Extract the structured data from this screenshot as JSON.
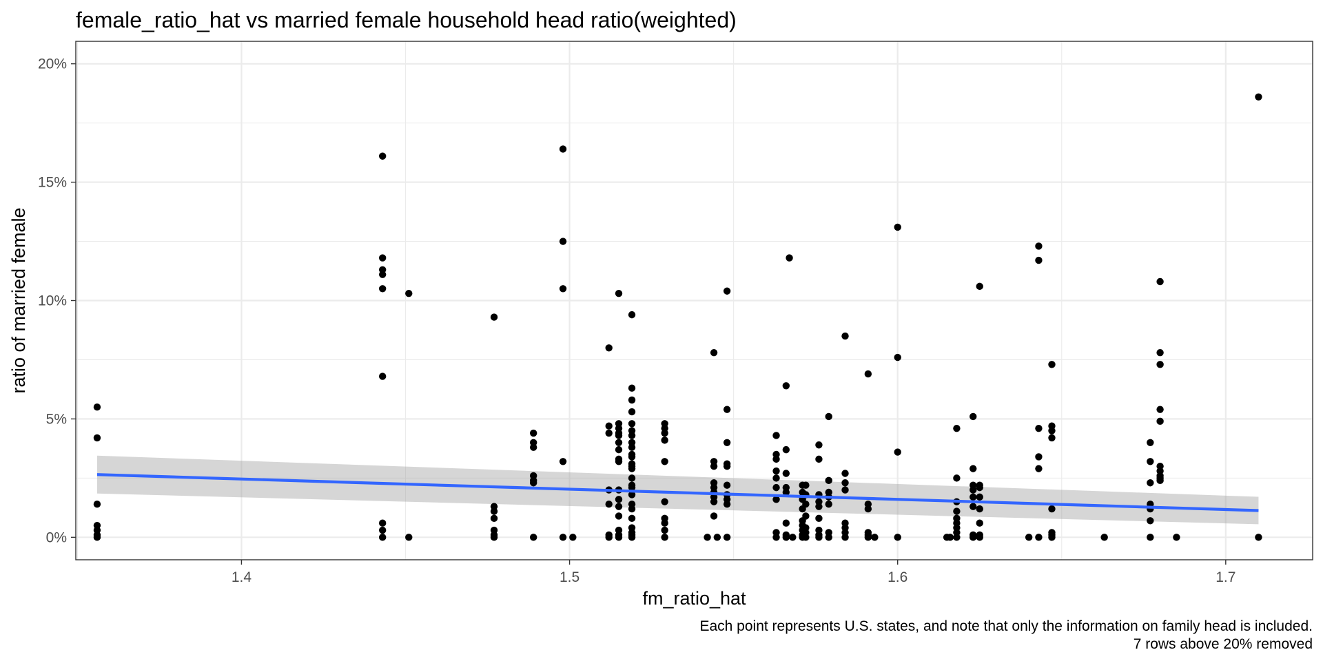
{
  "chart_data": {
    "type": "scatter",
    "title": "female_ratio_hat vs married female household head ratio(weighted)",
    "xlabel": "fm_ratio_hat",
    "ylabel": "ratio of married female",
    "caption_lines": [
      "Each point represents U.S. states, and note that only the information on family head is included.",
      "7 rows above 20% removed"
    ],
    "xlim": [
      1.3495,
      1.7265
    ],
    "ylim": [
      -0.0095,
      0.2095
    ],
    "x_ticks": [
      {
        "value": 1.4,
        "label": "1.4"
      },
      {
        "value": 1.5,
        "label": "1.5"
      },
      {
        "value": 1.6,
        "label": "1.6"
      },
      {
        "value": 1.7,
        "label": "1.7"
      }
    ],
    "x_minor_ticks": [
      1.35,
      1.45,
      1.55,
      1.65
    ],
    "y_ticks": [
      {
        "value": 0.0,
        "label": "0%"
      },
      {
        "value": 0.05,
        "label": "5%"
      },
      {
        "value": 0.1,
        "label": "10%"
      },
      {
        "value": 0.15,
        "label": "15%"
      },
      {
        "value": 0.2,
        "label": "20%"
      }
    ],
    "y_minor_ticks": [
      0.025,
      0.075,
      0.125,
      0.175
    ],
    "grid": true,
    "theme": "bw",
    "points": [
      [
        1.356,
        0.055
      ],
      [
        1.356,
        0.042
      ],
      [
        1.356,
        0.014
      ],
      [
        1.356,
        0.005
      ],
      [
        1.356,
        0.003
      ],
      [
        1.356,
        0.001
      ],
      [
        1.356,
        0.0
      ],
      [
        1.443,
        0.161
      ],
      [
        1.443,
        0.118
      ],
      [
        1.443,
        0.113
      ],
      [
        1.443,
        0.111
      ],
      [
        1.443,
        0.105
      ],
      [
        1.443,
        0.068
      ],
      [
        1.443,
        0.006
      ],
      [
        1.443,
        0.003
      ],
      [
        1.443,
        0.0
      ],
      [
        1.451,
        0.103
      ],
      [
        1.451,
        0.0
      ],
      [
        1.477,
        0.093
      ],
      [
        1.477,
        0.013
      ],
      [
        1.477,
        0.011
      ],
      [
        1.477,
        0.008
      ],
      [
        1.477,
        0.003
      ],
      [
        1.477,
        0.001
      ],
      [
        1.477,
        0.0
      ],
      [
        1.489,
        0.044
      ],
      [
        1.489,
        0.04
      ],
      [
        1.489,
        0.038
      ],
      [
        1.489,
        0.026
      ],
      [
        1.489,
        0.024
      ],
      [
        1.489,
        0.023
      ],
      [
        1.489,
        0.0
      ],
      [
        1.498,
        0.164
      ],
      [
        1.498,
        0.125
      ],
      [
        1.498,
        0.105
      ],
      [
        1.498,
        0.032
      ],
      [
        1.498,
        0.0
      ],
      [
        1.501,
        0.0
      ],
      [
        1.512,
        0.08
      ],
      [
        1.512,
        0.047
      ],
      [
        1.512,
        0.044
      ],
      [
        1.512,
        0.02
      ],
      [
        1.512,
        0.014
      ],
      [
        1.512,
        0.001
      ],
      [
        1.512,
        0.0
      ],
      [
        1.515,
        0.103
      ],
      [
        1.515,
        0.048
      ],
      [
        1.515,
        0.046
      ],
      [
        1.515,
        0.044
      ],
      [
        1.515,
        0.043
      ],
      [
        1.515,
        0.04
      ],
      [
        1.515,
        0.037
      ],
      [
        1.515,
        0.033
      ],
      [
        1.515,
        0.032
      ],
      [
        1.515,
        0.02
      ],
      [
        1.515,
        0.016
      ],
      [
        1.515,
        0.013
      ],
      [
        1.515,
        0.009
      ],
      [
        1.515,
        0.003
      ],
      [
        1.515,
        0.001
      ],
      [
        1.515,
        0.0
      ],
      [
        1.519,
        0.094
      ],
      [
        1.519,
        0.063
      ],
      [
        1.519,
        0.058
      ],
      [
        1.519,
        0.053
      ],
      [
        1.519,
        0.048
      ],
      [
        1.519,
        0.045
      ],
      [
        1.519,
        0.043
      ],
      [
        1.519,
        0.04
      ],
      [
        1.519,
        0.038
      ],
      [
        1.519,
        0.035
      ],
      [
        1.519,
        0.034
      ],
      [
        1.519,
        0.031
      ],
      [
        1.519,
        0.03
      ],
      [
        1.519,
        0.029
      ],
      [
        1.519,
        0.025
      ],
      [
        1.519,
        0.022
      ],
      [
        1.519,
        0.021
      ],
      [
        1.519,
        0.018
      ],
      [
        1.519,
        0.014
      ],
      [
        1.519,
        0.012
      ],
      [
        1.519,
        0.008
      ],
      [
        1.519,
        0.004
      ],
      [
        1.519,
        0.002
      ],
      [
        1.519,
        0.001
      ],
      [
        1.519,
        0.0
      ],
      [
        1.529,
        0.048
      ],
      [
        1.529,
        0.046
      ],
      [
        1.529,
        0.044
      ],
      [
        1.529,
        0.041
      ],
      [
        1.529,
        0.032
      ],
      [
        1.529,
        0.015
      ],
      [
        1.529,
        0.008
      ],
      [
        1.529,
        0.006
      ],
      [
        1.529,
        0.003
      ],
      [
        1.529,
        0.0
      ],
      [
        1.544,
        0.078
      ],
      [
        1.544,
        0.032
      ],
      [
        1.544,
        0.03
      ],
      [
        1.544,
        0.023
      ],
      [
        1.544,
        0.021
      ],
      [
        1.544,
        0.019
      ],
      [
        1.544,
        0.017
      ],
      [
        1.544,
        0.015
      ],
      [
        1.544,
        0.009
      ],
      [
        1.542,
        0.0
      ],
      [
        1.545,
        0.0
      ],
      [
        1.548,
        0.104
      ],
      [
        1.548,
        0.054
      ],
      [
        1.548,
        0.04
      ],
      [
        1.548,
        0.031
      ],
      [
        1.548,
        0.03
      ],
      [
        1.548,
        0.022
      ],
      [
        1.548,
        0.018
      ],
      [
        1.548,
        0.016
      ],
      [
        1.548,
        0.014
      ],
      [
        1.548,
        0.0
      ],
      [
        1.563,
        0.043
      ],
      [
        1.563,
        0.035
      ],
      [
        1.563,
        0.033
      ],
      [
        1.563,
        0.028
      ],
      [
        1.563,
        0.025
      ],
      [
        1.563,
        0.021
      ],
      [
        1.563,
        0.016
      ],
      [
        1.563,
        0.002
      ],
      [
        1.563,
        0.0
      ],
      [
        1.566,
        0.064
      ],
      [
        1.566,
        0.037
      ],
      [
        1.566,
        0.027
      ],
      [
        1.566,
        0.021
      ],
      [
        1.566,
        0.019
      ],
      [
        1.566,
        0.006
      ],
      [
        1.566,
        0.001
      ],
      [
        1.566,
        0.0
      ],
      [
        1.567,
        0.118
      ],
      [
        1.568,
        0.0
      ],
      [
        1.571,
        0.022
      ],
      [
        1.571,
        0.019
      ],
      [
        1.571,
        0.016
      ],
      [
        1.571,
        0.012
      ],
      [
        1.571,
        0.007
      ],
      [
        1.571,
        0.005
      ],
      [
        1.571,
        0.003
      ],
      [
        1.571,
        0.001
      ],
      [
        1.571,
        0.0
      ],
      [
        1.572,
        0.022
      ],
      [
        1.572,
        0.018
      ],
      [
        1.572,
        0.014
      ],
      [
        1.572,
        0.009
      ],
      [
        1.572,
        0.004
      ],
      [
        1.572,
        0.002
      ],
      [
        1.572,
        0.0
      ],
      [
        1.576,
        0.039
      ],
      [
        1.576,
        0.033
      ],
      [
        1.576,
        0.018
      ],
      [
        1.576,
        0.015
      ],
      [
        1.576,
        0.013
      ],
      [
        1.576,
        0.008
      ],
      [
        1.576,
        0.003
      ],
      [
        1.576,
        0.001
      ],
      [
        1.576,
        0.0
      ],
      [
        1.579,
        0.051
      ],
      [
        1.579,
        0.024
      ],
      [
        1.579,
        0.019
      ],
      [
        1.579,
        0.017
      ],
      [
        1.579,
        0.014
      ],
      [
        1.579,
        0.002
      ],
      [
        1.579,
        0.0
      ],
      [
        1.584,
        0.085
      ],
      [
        1.584,
        0.027
      ],
      [
        1.584,
        0.023
      ],
      [
        1.584,
        0.02
      ],
      [
        1.584,
        0.006
      ],
      [
        1.584,
        0.004
      ],
      [
        1.584,
        0.002
      ],
      [
        1.584,
        0.0
      ],
      [
        1.591,
        0.069
      ],
      [
        1.591,
        0.014
      ],
      [
        1.591,
        0.012
      ],
      [
        1.591,
        0.002
      ],
      [
        1.591,
        0.001
      ],
      [
        1.591,
        0.0
      ],
      [
        1.593,
        0.0
      ],
      [
        1.6,
        0.131
      ],
      [
        1.6,
        0.076
      ],
      [
        1.6,
        0.036
      ],
      [
        1.6,
        0.0
      ],
      [
        1.615,
        0.0
      ],
      [
        1.616,
        0.0
      ],
      [
        1.618,
        0.046
      ],
      [
        1.618,
        0.025
      ],
      [
        1.618,
        0.015
      ],
      [
        1.618,
        0.011
      ],
      [
        1.618,
        0.008
      ],
      [
        1.618,
        0.006
      ],
      [
        1.618,
        0.004
      ],
      [
        1.618,
        0.002
      ],
      [
        1.618,
        0.0
      ],
      [
        1.623,
        0.051
      ],
      [
        1.623,
        0.029
      ],
      [
        1.623,
        0.022
      ],
      [
        1.623,
        0.02
      ],
      [
        1.623,
        0.017
      ],
      [
        1.623,
        0.013
      ],
      [
        1.623,
        0.001
      ],
      [
        1.623,
        0.0
      ],
      [
        1.625,
        0.106
      ],
      [
        1.625,
        0.022
      ],
      [
        1.625,
        0.021
      ],
      [
        1.625,
        0.017
      ],
      [
        1.625,
        0.012
      ],
      [
        1.625,
        0.006
      ],
      [
        1.625,
        0.001
      ],
      [
        1.625,
        0.0
      ],
      [
        1.64,
        0.0
      ],
      [
        1.643,
        0.123
      ],
      [
        1.643,
        0.117
      ],
      [
        1.643,
        0.046
      ],
      [
        1.643,
        0.034
      ],
      [
        1.643,
        0.029
      ],
      [
        1.643,
        0.0
      ],
      [
        1.647,
        0.073
      ],
      [
        1.647,
        0.047
      ],
      [
        1.647,
        0.045
      ],
      [
        1.647,
        0.042
      ],
      [
        1.647,
        0.012
      ],
      [
        1.647,
        0.002
      ],
      [
        1.647,
        0.001
      ],
      [
        1.647,
        0.0
      ],
      [
        1.663,
        0.0
      ],
      [
        1.677,
        0.04
      ],
      [
        1.677,
        0.032
      ],
      [
        1.677,
        0.023
      ],
      [
        1.677,
        0.014
      ],
      [
        1.677,
        0.012
      ],
      [
        1.677,
        0.007
      ],
      [
        1.677,
        0.0
      ],
      [
        1.68,
        0.108
      ],
      [
        1.68,
        0.078
      ],
      [
        1.68,
        0.073
      ],
      [
        1.68,
        0.054
      ],
      [
        1.68,
        0.049
      ],
      [
        1.68,
        0.03
      ],
      [
        1.68,
        0.028
      ],
      [
        1.68,
        0.026
      ],
      [
        1.68,
        0.025
      ],
      [
        1.68,
        0.024
      ],
      [
        1.685,
        0.0
      ],
      [
        1.71,
        0.186
      ],
      [
        1.71,
        0.0
      ]
    ],
    "trend_line": {
      "method": "lm",
      "color": "#3366ff",
      "band_color": "#999999",
      "x": [
        1.356,
        1.71
      ],
      "y": [
        0.0265,
        0.0113
      ],
      "band_lower": [
        0.0185,
        0.0055
      ],
      "band_upper": [
        0.0345,
        0.0171
      ]
    }
  }
}
